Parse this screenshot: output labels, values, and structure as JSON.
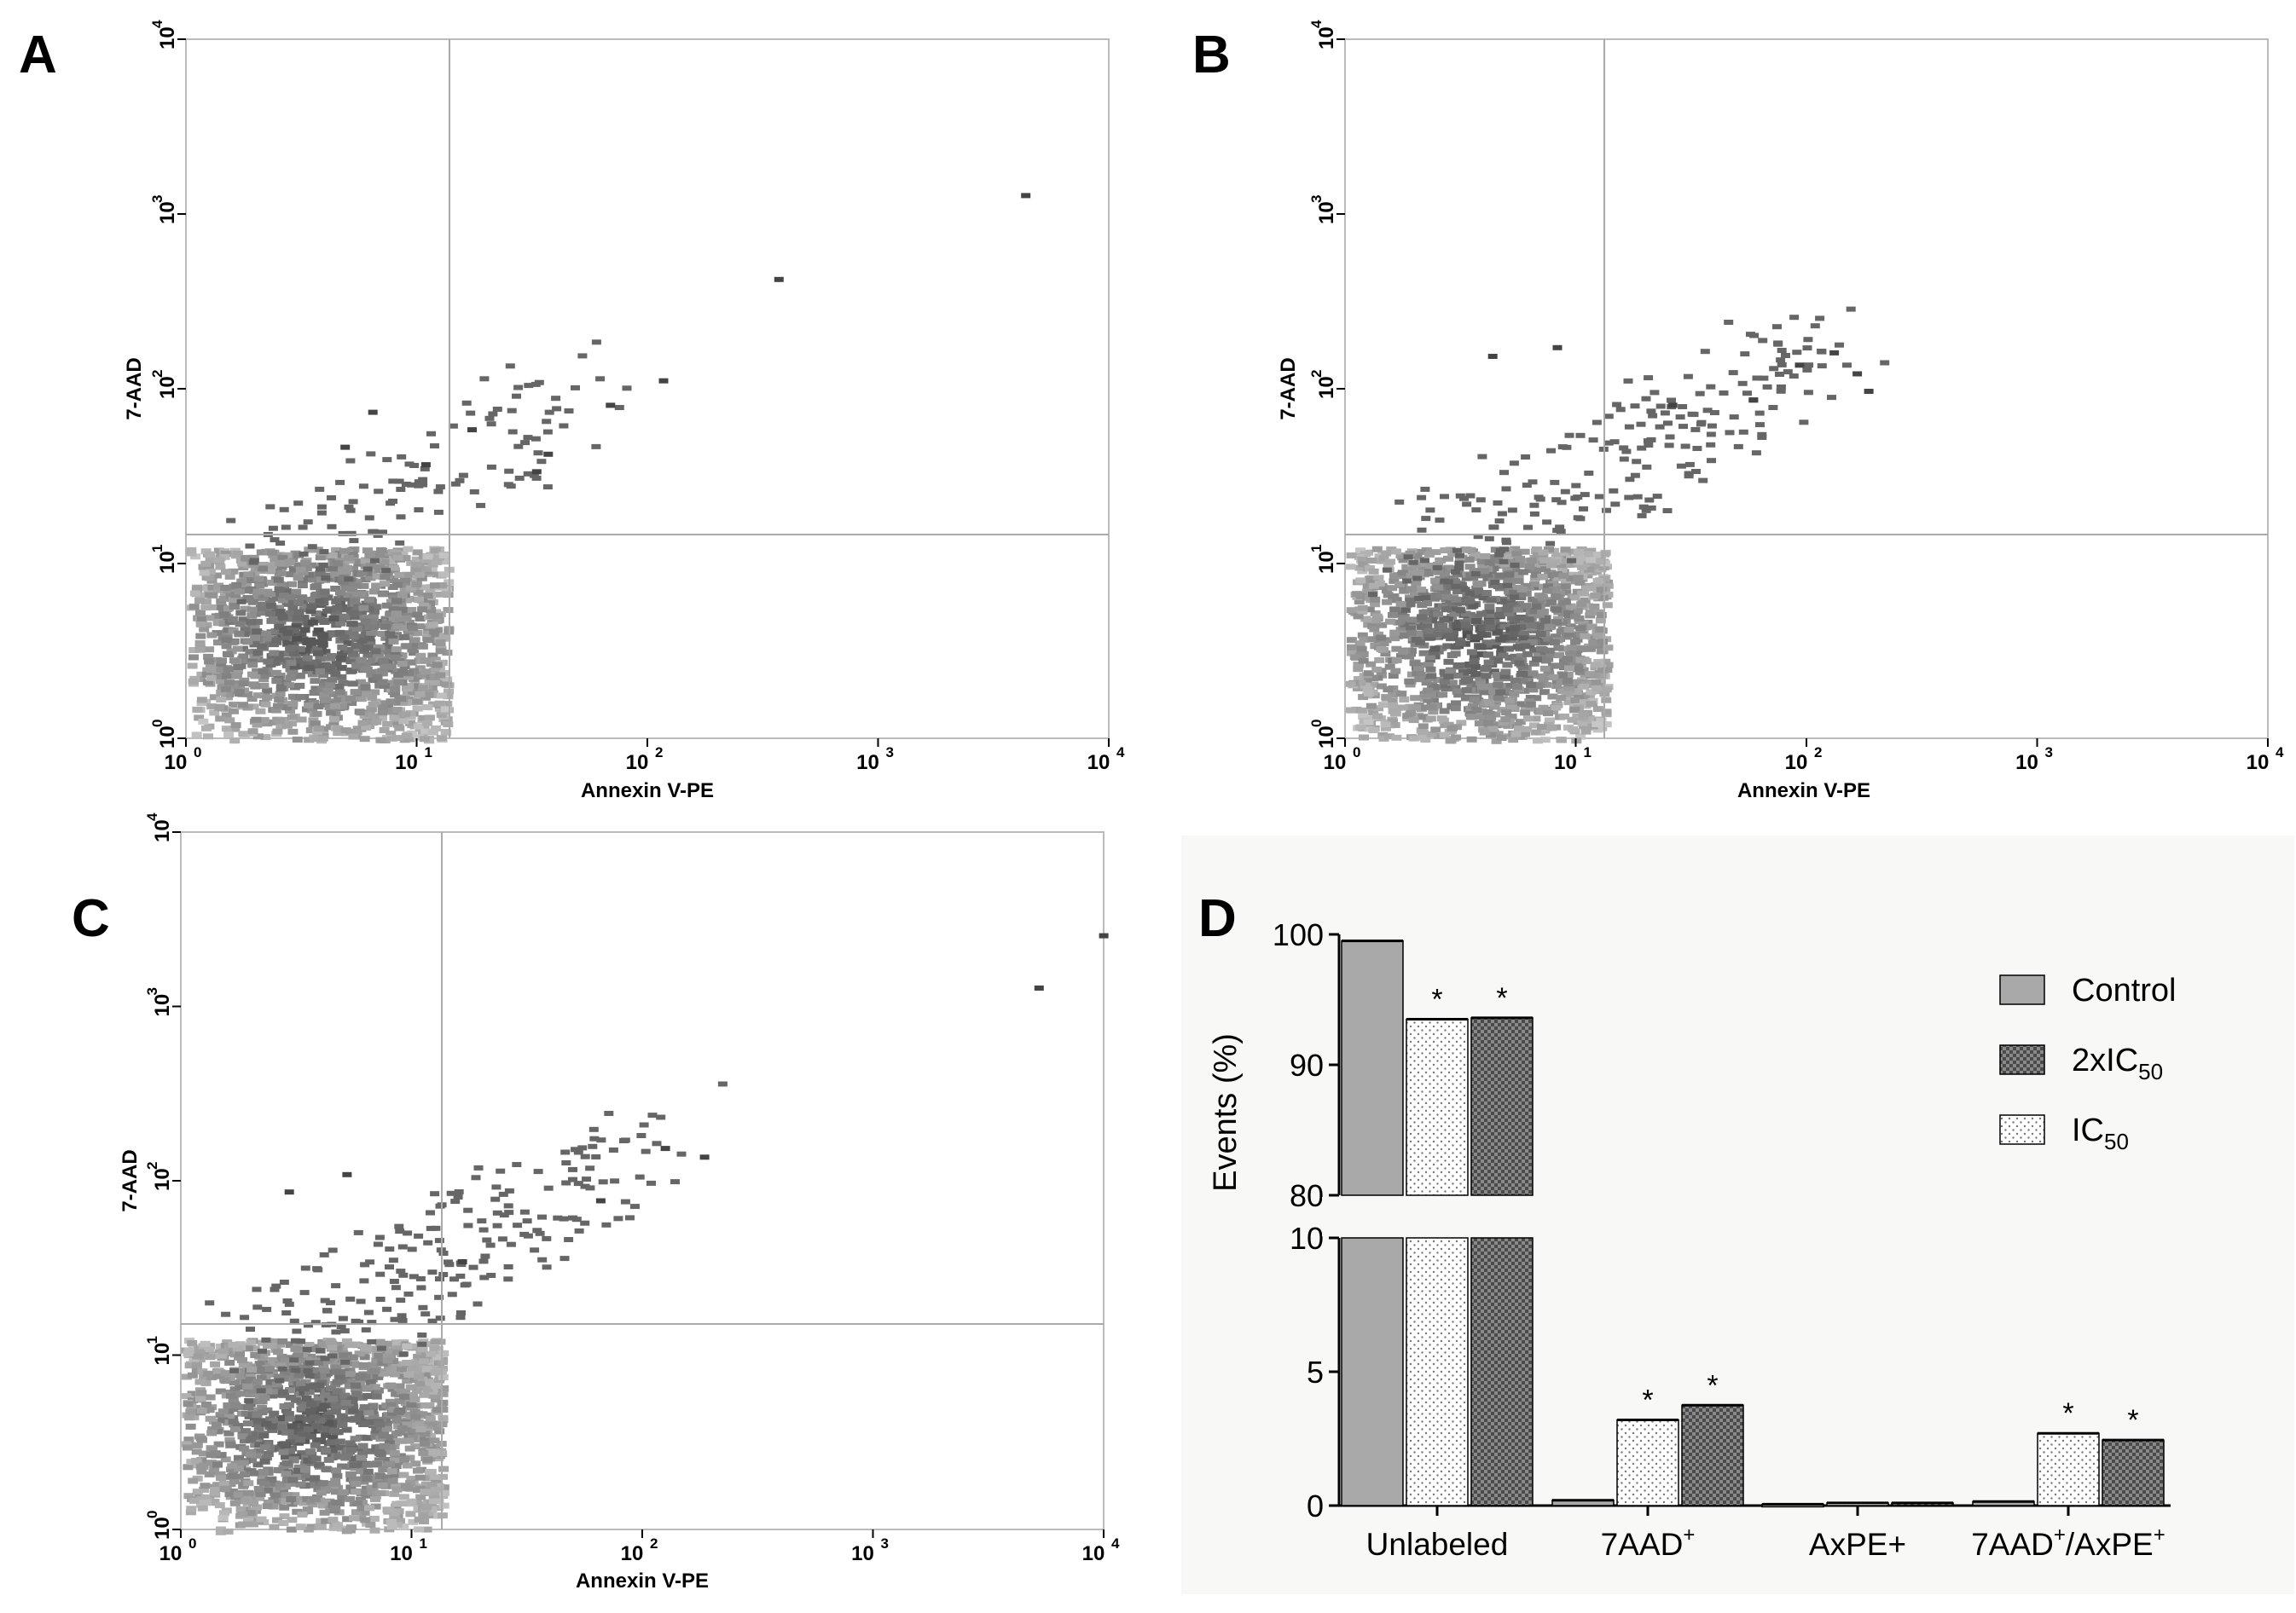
{
  "panels": {
    "A": {
      "letter": "A",
      "xlabel": "Annexin V-PE",
      "ylabel": "7-AAD",
      "outliers": [
        [
          3.62,
          3.12
        ],
        [
          2.55,
          2.64
        ],
        [
          2.05,
          2.06
        ],
        [
          1.82,
          1.92
        ],
        [
          1.55,
          1.64
        ],
        [
          1.5,
          1.54
        ],
        [
          1.22,
          1.78
        ],
        [
          1.02,
          1.58
        ],
        [
          0.79,
          1.88
        ],
        [
          0.67,
          1.68
        ]
      ],
      "cluster_spread": 0.55
    },
    "B": {
      "letter": "B",
      "xlabel": "Annexin V-PE",
      "ylabel": "7-AAD",
      "outliers": [
        [
          2.1,
          2.22
        ],
        [
          2.2,
          2.1
        ],
        [
          2.25,
          2.0
        ],
        [
          1.95,
          2.15
        ],
        [
          1.75,
          1.95
        ],
        [
          1.4,
          1.92
        ],
        [
          0.62,
          2.2
        ],
        [
          0.9,
          2.25
        ]
      ],
      "cluster_spread": 1.0
    },
    "C": {
      "letter": "C",
      "xlabel": "Annexin V-PE",
      "ylabel": "7-AAD",
      "outliers": [
        [
          3.98,
          3.42
        ],
        [
          3.7,
          3.12
        ],
        [
          2.25,
          2.15
        ],
        [
          2.08,
          2.2
        ],
        [
          1.8,
          1.9
        ],
        [
          1.2,
          1.55
        ],
        [
          0.7,
          2.05
        ],
        [
          0.45,
          1.95
        ]
      ],
      "cluster_spread": 1.0
    }
  },
  "ticks": {
    "e0": "10",
    "e0sup": "0",
    "e1": "10",
    "e1sup": "1",
    "e2": "10",
    "e2sup": "2",
    "e3": "10",
    "e3sup": "3",
    "e4": "10",
    "e4sup": "4"
  },
  "chart_data": [
    {
      "type": "scatter",
      "panel": "A",
      "title": "",
      "xlabel": "Annexin V-PE",
      "ylabel": "7-AAD",
      "xscale": "log",
      "yscale": "log",
      "xlim": [
        1,
        10000
      ],
      "ylim": [
        1,
        10000
      ],
      "gate": {
        "x": 14,
        "y": 14
      }
    },
    {
      "type": "scatter",
      "panel": "B",
      "title": "",
      "xlabel": "Annexin V-PE",
      "ylabel": "7-AAD",
      "xscale": "log",
      "yscale": "log",
      "xlim": [
        1,
        10000
      ],
      "ylim": [
        1,
        10000
      ],
      "gate": {
        "x": 14,
        "y": 14
      }
    },
    {
      "type": "scatter",
      "panel": "C",
      "title": "",
      "xlabel": "Annexin V-PE",
      "ylabel": "7-AAD",
      "xscale": "log",
      "yscale": "log",
      "xlim": [
        1,
        10000
      ],
      "ylim": [
        1,
        10000
      ],
      "gate": {
        "x": 14,
        "y": 14
      }
    },
    {
      "type": "bar",
      "panel": "D",
      "letter": "D",
      "categories": [
        "Unlabeled",
        "7AAD",
        "AxPE+",
        "7AAD"
      ],
      "category_sup": [
        "",
        "+",
        "",
        "+"
      ],
      "category_tail": [
        "",
        "",
        "",
        "/AxPE"
      ],
      "category_tail_sup": [
        "",
        "",
        "",
        "+"
      ],
      "series": [
        {
          "name": "Control",
          "sub": "",
          "values": [
            99.5,
            0.2,
            0.05,
            0.15
          ],
          "stars": [
            false,
            false,
            false,
            false
          ],
          "color": "#a9a9a9"
        },
        {
          "name": "IC",
          "sub": "50",
          "values": [
            93.5,
            3.2,
            0.1,
            2.7
          ],
          "stars": [
            true,
            true,
            false,
            true
          ],
          "color": "#ffffff"
        },
        {
          "name": "2xIC",
          "sub": "50",
          "values": [
            93.6,
            3.75,
            0.1,
            2.45
          ],
          "stars": [
            true,
            true,
            false,
            true
          ],
          "color": "#555555"
        }
      ],
      "legend_order": [
        "Control",
        "2xIC",
        "IC"
      ],
      "ylabel": "Events (%)",
      "ylim_lower": [
        0,
        10
      ],
      "ylim_upper": [
        80,
        100
      ],
      "yticks": [
        "0",
        "5",
        "10",
        "80",
        "90",
        "100"
      ],
      "star": "*",
      "legend": "top-right"
    }
  ]
}
